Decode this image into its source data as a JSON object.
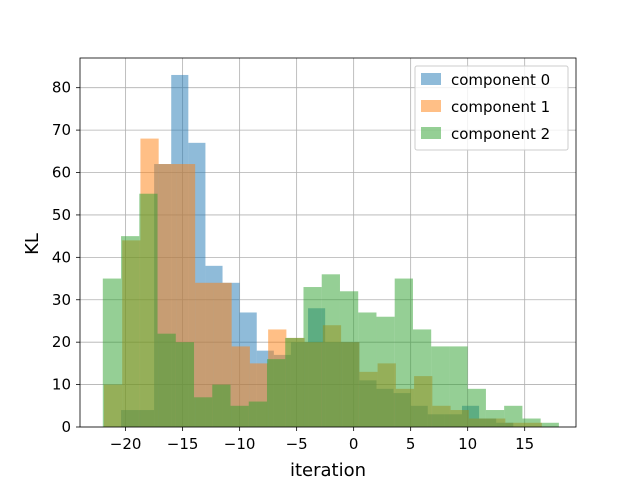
{
  "chart_data": {
    "type": "bar",
    "subtype": "overlapping-histogram",
    "title": "",
    "xlabel": "iteration",
    "ylabel": "KL",
    "xlim": [
      -24.0,
      19.5
    ],
    "ylim": [
      0,
      87
    ],
    "xticks": [
      -20,
      -15,
      -10,
      -5,
      0,
      5,
      10,
      15
    ],
    "yticks": [
      0,
      10,
      20,
      30,
      40,
      50,
      60,
      70,
      80
    ],
    "grid": true,
    "legend_position": "top-right",
    "series": [
      {
        "name": "component 0",
        "color": "#1f77b4",
        "opacity": 0.5,
        "bins": [
          [
            -20.4,
            -18.9,
            4
          ],
          [
            -18.9,
            -17.5,
            4
          ],
          [
            -17.5,
            -16.0,
            62
          ],
          [
            -16.0,
            -14.5,
            83
          ],
          [
            -14.5,
            -13.0,
            67
          ],
          [
            -13.0,
            -11.5,
            38
          ],
          [
            -11.5,
            -10.0,
            34
          ],
          [
            -10.0,
            -8.5,
            27
          ],
          [
            -8.5,
            -7.0,
            18
          ],
          [
            -7.0,
            -5.5,
            17
          ],
          [
            -5.5,
            -4.0,
            20
          ],
          [
            -4.0,
            -2.5,
            28
          ],
          [
            -2.5,
            -1.0,
            20
          ],
          [
            -1.0,
            0.5,
            20
          ],
          [
            0.5,
            2.0,
            11
          ],
          [
            2.0,
            3.5,
            9
          ],
          [
            3.5,
            5.0,
            8
          ],
          [
            5.0,
            6.5,
            5
          ],
          [
            6.5,
            8.0,
            3
          ],
          [
            8.0,
            9.5,
            3
          ],
          [
            9.5,
            11.0,
            5
          ],
          [
            11.0,
            12.5,
            2
          ],
          [
            12.5,
            14.0,
            1
          ]
        ]
      },
      {
        "name": "component 1",
        "color": "#ff7f0e",
        "opacity": 0.5,
        "bins": [
          [
            -21.9,
            -20.3,
            10
          ],
          [
            -20.3,
            -18.7,
            44
          ],
          [
            -18.7,
            -17.1,
            68
          ],
          [
            -17.1,
            -15.5,
            62
          ],
          [
            -15.5,
            -13.9,
            62
          ],
          [
            -13.9,
            -12.3,
            34
          ],
          [
            -12.3,
            -10.7,
            34
          ],
          [
            -10.7,
            -9.1,
            19
          ],
          [
            -9.1,
            -7.5,
            15
          ],
          [
            -7.5,
            -5.9,
            23
          ],
          [
            -5.9,
            -4.3,
            21
          ],
          [
            -4.3,
            -2.7,
            20
          ],
          [
            -2.7,
            -1.1,
            24
          ],
          [
            -1.1,
            0.5,
            20
          ],
          [
            0.5,
            2.1,
            13
          ],
          [
            2.1,
            3.7,
            15
          ],
          [
            3.7,
            5.3,
            9
          ],
          [
            5.3,
            6.9,
            12
          ],
          [
            6.9,
            8.5,
            5
          ],
          [
            8.5,
            10.1,
            4
          ],
          [
            10.1,
            11.7,
            2
          ],
          [
            11.7,
            13.3,
            2
          ],
          [
            13.3,
            14.9,
            1
          ],
          [
            14.9,
            16.5,
            1
          ]
        ]
      },
      {
        "name": "component 2",
        "color": "#2ca02c",
        "opacity": 0.5,
        "bins": [
          [
            -22.0,
            -20.4,
            35
          ],
          [
            -20.4,
            -18.8,
            45
          ],
          [
            -18.8,
            -17.2,
            55
          ],
          [
            -17.2,
            -15.6,
            22
          ],
          [
            -15.6,
            -14.0,
            20
          ],
          [
            -14.0,
            -12.4,
            7
          ],
          [
            -12.4,
            -10.8,
            10
          ],
          [
            -10.8,
            -9.2,
            5
          ],
          [
            -9.2,
            -7.6,
            6
          ],
          [
            -7.6,
            -6.0,
            16
          ],
          [
            -6.0,
            -4.4,
            21
          ],
          [
            -4.4,
            -2.8,
            33
          ],
          [
            -2.8,
            -1.2,
            36
          ],
          [
            -1.2,
            0.4,
            32
          ],
          [
            0.4,
            2.0,
            27
          ],
          [
            2.0,
            3.6,
            26
          ],
          [
            3.6,
            5.2,
            35
          ],
          [
            5.2,
            6.8,
            23
          ],
          [
            6.8,
            8.4,
            19
          ],
          [
            8.4,
            10.0,
            19
          ],
          [
            10.0,
            11.6,
            9
          ],
          [
            11.6,
            13.2,
            4
          ],
          [
            13.2,
            14.8,
            5
          ],
          [
            14.8,
            16.4,
            2
          ],
          [
            16.4,
            18.0,
            1
          ]
        ]
      }
    ]
  }
}
